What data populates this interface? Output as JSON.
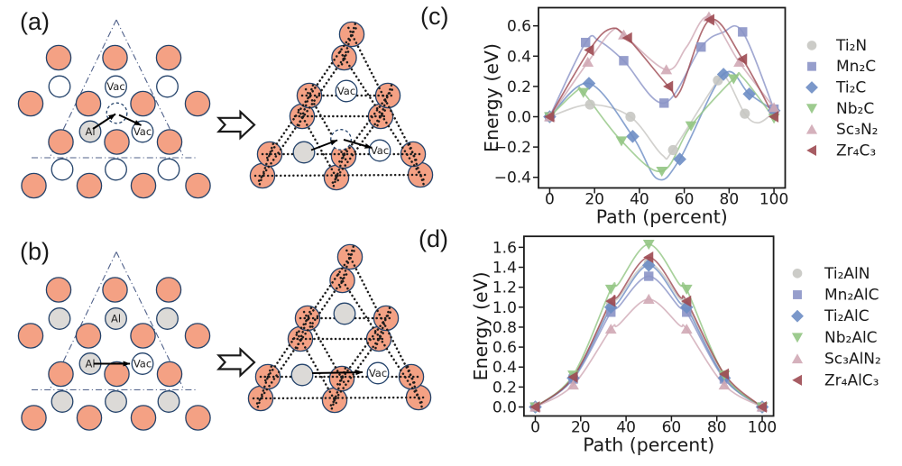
{
  "figure": {
    "background": "#ffffff",
    "panels": {
      "a": {
        "label": "(a)"
      },
      "b": {
        "label": "(b)"
      },
      "c": {
        "label": "(c)"
      },
      "d": {
        "label": "(d)"
      }
    }
  },
  "diagram": {
    "labels": {
      "vacancy": "Vac",
      "aluminum": "Al"
    },
    "colors": {
      "m_atom_fill": "#f4a184",
      "a_atom_gray_fill": "#dcdad7",
      "vacancy_fill": "#ffffff",
      "atom_outline": "#24436b",
      "dashed_circle_outline": "#24436b",
      "triangle_line": "#50618a",
      "dotted_bond": "#1c1c1c",
      "arrow": "#000000",
      "block_arrow_outline": "#1a1a1a",
      "block_arrow_fill": "#ffffff"
    }
  },
  "chart_data": [
    {
      "id": "c",
      "type": "line",
      "title": "",
      "xlabel": "Path (percent)",
      "ylabel": "Energy (eV)",
      "xlim": [
        -5,
        105
      ],
      "ylim": [
        -0.47,
        0.72
      ],
      "xticks": [
        0,
        20,
        40,
        60,
        80,
        100
      ],
      "yticks": [
        -0.4,
        -0.2,
        0.0,
        0.2,
        0.4,
        0.6
      ],
      "grid": false,
      "legend_position": "outside-right",
      "series": [
        {
          "name": "Ti₂N",
          "marker": "circle",
          "color": "#c7c6c2",
          "points": [
            [
              0,
              0
            ],
            [
              18,
              0.08
            ],
            [
              36,
              0.0
            ],
            [
              55,
              -0.22
            ],
            [
              75,
              0.24
            ],
            [
              87,
              0.02
            ],
            [
              100,
              0.03
            ]
          ],
          "anchors": [
            [
              50,
              -0.25
            ],
            [
              79,
              0.25
            ],
            [
              93,
              -0.04
            ]
          ]
        },
        {
          "name": "Mn₂C",
          "marker": "square",
          "color": "#8b93c7",
          "points": [
            [
              0,
              0
            ],
            [
              16,
              0.49
            ],
            [
              33,
              0.37
            ],
            [
              51,
              0.09
            ],
            [
              67.5,
              0.46
            ],
            [
              86,
              0.56
            ],
            [
              100,
              0.05
            ]
          ],
          "anchors": [
            [
              22,
              0.5
            ],
            [
              77,
              0.555
            ]
          ]
        },
        {
          "name": "Ti₂C",
          "marker": "diamond",
          "color": "#6d8dc4",
          "points": [
            [
              0,
              0
            ],
            [
              17.5,
              0.22
            ],
            [
              37,
              -0.13
            ],
            [
              58,
              -0.28
            ],
            [
              77.5,
              0.28
            ],
            [
              89,
              0.15
            ],
            [
              100,
              0.04
            ]
          ],
          "anchors": [
            [
              48,
              -0.41
            ]
          ]
        },
        {
          "name": "Nb₂C",
          "marker": "triangle-down",
          "color": "#92c583",
          "points": [
            [
              0,
              0
            ],
            [
              15,
              0.16
            ],
            [
              32,
              -0.16
            ],
            [
              50,
              -0.36
            ],
            [
              63,
              -0.06
            ],
            [
              82,
              0.25
            ],
            [
              100,
              -0.01
            ]
          ],
          "anchors": [
            [
              12,
              0.17
            ],
            [
              86,
              0.26
            ]
          ]
        },
        {
          "name": "Sc₃N₂",
          "marker": "triangle-up",
          "color": "#d0a9b5",
          "points": [
            [
              0,
              0
            ],
            [
              17,
              0.36
            ],
            [
              33,
              0.54
            ],
            [
              52,
              0.31
            ],
            [
              71,
              0.66
            ],
            [
              84.5,
              0.36
            ],
            [
              100,
              0.06
            ]
          ],
          "anchors": [
            [
              28,
              0.57
            ],
            [
              61,
              0.46
            ]
          ]
        },
        {
          "name": "Zr₄C₃",
          "marker": "triangle-left",
          "color": "#9d4a52",
          "points": [
            [
              0,
              0
            ],
            [
              17.7,
              0.44
            ],
            [
              34.7,
              0.52
            ],
            [
              53,
              0.2
            ],
            [
              71.4,
              0.64
            ],
            [
              86,
              0.38
            ],
            [
              100,
              0.0
            ]
          ],
          "anchors": [
            [
              27,
              0.58
            ],
            [
              58,
              0.165
            ]
          ]
        }
      ]
    },
    {
      "id": "d",
      "type": "line",
      "title": "",
      "xlabel": "Path (percent)",
      "ylabel": "Energy (eV)",
      "xlim": [
        -5,
        105
      ],
      "ylim": [
        -0.09,
        1.71
      ],
      "xticks": [
        0,
        20,
        40,
        60,
        80,
        100
      ],
      "yticks": [
        0.0,
        0.2,
        0.4,
        0.6,
        0.8,
        1.0,
        1.2,
        1.4,
        1.6
      ],
      "grid": false,
      "legend_position": "outside-right",
      "series": [
        {
          "name": "Ti₂AlN",
          "marker": "circle",
          "color": "#c7c6c2",
          "points": [
            [
              0,
              0
            ],
            [
              16.7,
              0.3
            ],
            [
              33.3,
              1.04
            ],
            [
              50,
              1.44
            ],
            [
              66.7,
              1.04
            ],
            [
              83.3,
              0.3
            ],
            [
              100,
              0
            ]
          ],
          "anchors": [
            [
              36.5,
              1.09
            ],
            [
              63.5,
              1.09
            ]
          ]
        },
        {
          "name": "Mn₂AlC",
          "marker": "square",
          "color": "#8b93c7",
          "points": [
            [
              0,
              0
            ],
            [
              16.7,
              0.28
            ],
            [
              33.3,
              0.95
            ],
            [
              50,
              1.31
            ],
            [
              66.7,
              0.95
            ],
            [
              83.3,
              0.28
            ],
            [
              100,
              0
            ]
          ],
          "anchors": [
            [
              36.5,
              1.0
            ],
            [
              63.5,
              1.0
            ]
          ]
        },
        {
          "name": "Ti₂AlC",
          "marker": "diamond",
          "color": "#6d8dc4",
          "points": [
            [
              0,
              0
            ],
            [
              16.7,
              0.29
            ],
            [
              33.3,
              1.0
            ],
            [
              50,
              1.42
            ],
            [
              66.7,
              1.0
            ],
            [
              83.3,
              0.29
            ],
            [
              100,
              0
            ]
          ],
          "anchors": [
            [
              36.5,
              1.05
            ],
            [
              63.5,
              1.05
            ]
          ]
        },
        {
          "name": "Nb₂AlC",
          "marker": "triangle-down",
          "color": "#92c583",
          "points": [
            [
              0,
              0
            ],
            [
              16.7,
              0.32
            ],
            [
              33.3,
              1.18
            ],
            [
              50,
              1.63
            ],
            [
              66.7,
              1.18
            ],
            [
              83.3,
              0.32
            ],
            [
              100,
              0
            ]
          ],
          "anchors": [
            [
              36.5,
              1.23
            ],
            [
              63.5,
              1.23
            ]
          ]
        },
        {
          "name": "Sc₃AlN₂",
          "marker": "triangle-up",
          "color": "#d0a9b5",
          "points": [
            [
              0,
              0
            ],
            [
              16.7,
              0.22
            ],
            [
              33.3,
              0.78
            ],
            [
              50,
              1.08
            ],
            [
              66.7,
              0.78
            ],
            [
              83.3,
              0.22
            ],
            [
              100,
              0
            ]
          ],
          "anchors": [
            [
              36.5,
              0.82
            ],
            [
              63.5,
              0.82
            ]
          ]
        },
        {
          "name": "Zr₄AlC₃",
          "marker": "triangle-left",
          "color": "#9d4a52",
          "points": [
            [
              0,
              0
            ],
            [
              16.7,
              0.3
            ],
            [
              33.3,
              1.06
            ],
            [
              50,
              1.5
            ],
            [
              66.7,
              1.06
            ],
            [
              83.3,
              0.33
            ],
            [
              100,
              0
            ]
          ],
          "anchors": [
            [
              36.5,
              1.11
            ],
            [
              63.5,
              1.11
            ]
          ]
        }
      ]
    }
  ]
}
